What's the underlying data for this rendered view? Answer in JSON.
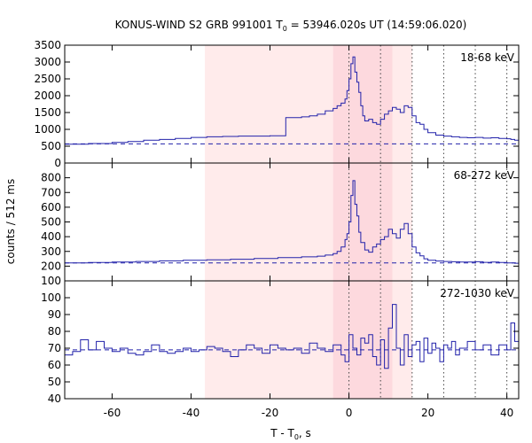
{
  "chart_data": {
    "type": "line",
    "title_main": "KONUS-WIND S2 GRB 991001 T",
    "title_sub": "0",
    "title_rest": " = 53946.020s UT (14:59:06.020)",
    "xlabel_main": "T - T",
    "xlabel_sub": "0",
    "xlabel_rest": ", s",
    "ylabel": "counts / 512 ms",
    "xlim": [
      -72,
      43
    ],
    "xticks": [
      -60,
      -40,
      -20,
      0,
      20,
      40
    ],
    "xtick_labels": [
      "-60",
      "-40",
      "-20",
      "0",
      "20",
      "40"
    ],
    "shading": [
      {
        "x0": -36.5,
        "x1": 16.0,
        "color": "#ffebeb"
      },
      {
        "x0": -4.0,
        "x1": 11.0,
        "color": "#fdd9de"
      }
    ],
    "dotted_lines": [
      0,
      8,
      16,
      24,
      32,
      40
    ],
    "colors": {
      "series": "#2222aa",
      "background_line": "#2222aa"
    },
    "panels": [
      {
        "label": "18-68 keV",
        "ylim": [
          0,
          3500
        ],
        "yticks": [
          0,
          500,
          1000,
          1500,
          2000,
          2500,
          3000,
          3500
        ],
        "ytick_labels": [
          "0",
          "500",
          "1000",
          "1500",
          "2000",
          "2500",
          "3000",
          "3500"
        ],
        "background": 570,
        "series": [
          [
            -72,
            560
          ],
          [
            -66,
            580
          ],
          [
            -60,
            610
          ],
          [
            -56,
            640
          ],
          [
            -52,
            680
          ],
          [
            -48,
            700
          ],
          [
            -44,
            730
          ],
          [
            -40,
            760
          ],
          [
            -36,
            780
          ],
          [
            -32,
            790
          ],
          [
            -28,
            800
          ],
          [
            -24,
            800
          ],
          [
            -20,
            810
          ],
          [
            -16,
            1350
          ],
          [
            -12,
            1370
          ],
          [
            -10,
            1400
          ],
          [
            -8,
            1450
          ],
          [
            -6,
            1550
          ],
          [
            -4,
            1620
          ],
          [
            -3,
            1700
          ],
          [
            -2,
            1780
          ],
          [
            -1,
            1900
          ],
          [
            -0.5,
            2150
          ],
          [
            0,
            2500
          ],
          [
            0.5,
            2950
          ],
          [
            1,
            3150
          ],
          [
            1.5,
            2700
          ],
          [
            2,
            2400
          ],
          [
            2.5,
            2100
          ],
          [
            3,
            1700
          ],
          [
            3.5,
            1400
          ],
          [
            4,
            1250
          ],
          [
            5,
            1300
          ],
          [
            6,
            1200
          ],
          [
            7,
            1150
          ],
          [
            8,
            1300
          ],
          [
            9,
            1450
          ],
          [
            10,
            1550
          ],
          [
            11,
            1650
          ],
          [
            12,
            1600
          ],
          [
            13,
            1500
          ],
          [
            14,
            1700
          ],
          [
            15,
            1650
          ],
          [
            16,
            1400
          ],
          [
            17,
            1200
          ],
          [
            18,
            1150
          ],
          [
            19,
            1000
          ],
          [
            20,
            900
          ],
          [
            22,
            830
          ],
          [
            24,
            800
          ],
          [
            26,
            780
          ],
          [
            28,
            760
          ],
          [
            30,
            750
          ],
          [
            32,
            760
          ],
          [
            34,
            740
          ],
          [
            36,
            750
          ],
          [
            38,
            730
          ],
          [
            40,
            720
          ],
          [
            41,
            700
          ],
          [
            42,
            680
          ],
          [
            43,
            660
          ]
        ]
      },
      {
        "label": "68-272 keV",
        "ylim": [
          100,
          900
        ],
        "yticks": [
          100,
          200,
          300,
          400,
          500,
          600,
          700,
          800
        ],
        "ytick_labels": [
          "100",
          "200",
          "300",
          "400",
          "500",
          "600",
          "700",
          "800"
        ],
        "background": 222,
        "series": [
          [
            -72,
            222
          ],
          [
            -66,
            225
          ],
          [
            -60,
            228
          ],
          [
            -54,
            232
          ],
          [
            -48,
            236
          ],
          [
            -42,
            240
          ],
          [
            -36,
            243
          ],
          [
            -30,
            247
          ],
          [
            -24,
            252
          ],
          [
            -18,
            258
          ],
          [
            -12,
            263
          ],
          [
            -8,
            268
          ],
          [
            -6,
            275
          ],
          [
            -4,
            285
          ],
          [
            -3,
            300
          ],
          [
            -2,
            330
          ],
          [
            -1,
            380
          ],
          [
            -0.5,
            420
          ],
          [
            0,
            500
          ],
          [
            0.5,
            680
          ],
          [
            1,
            780
          ],
          [
            1.5,
            620
          ],
          [
            2,
            540
          ],
          [
            2.5,
            430
          ],
          [
            3,
            360
          ],
          [
            4,
            310
          ],
          [
            5,
            295
          ],
          [
            6,
            330
          ],
          [
            7,
            350
          ],
          [
            8,
            380
          ],
          [
            9,
            400
          ],
          [
            10,
            450
          ],
          [
            11,
            420
          ],
          [
            12,
            390
          ],
          [
            13,
            450
          ],
          [
            14,
            490
          ],
          [
            15,
            420
          ],
          [
            16,
            330
          ],
          [
            17,
            290
          ],
          [
            18,
            270
          ],
          [
            19,
            250
          ],
          [
            20,
            240
          ],
          [
            22,
            235
          ],
          [
            24,
            232
          ],
          [
            26,
            230
          ],
          [
            28,
            228
          ],
          [
            30,
            228
          ],
          [
            32,
            230
          ],
          [
            34,
            226
          ],
          [
            36,
            228
          ],
          [
            38,
            225
          ],
          [
            40,
            222
          ],
          [
            42,
            220
          ],
          [
            43,
            218
          ]
        ]
      },
      {
        "label": "272-1030 keV",
        "ylim": [
          40,
          110
        ],
        "yticks": [
          40,
          50,
          60,
          70,
          80,
          90,
          100
        ],
        "ytick_labels": [
          "40",
          "50",
          "60",
          "70",
          "80",
          "90",
          "100"
        ],
        "background": 69,
        "series": [
          [
            -72,
            66
          ],
          [
            -70,
            68
          ],
          [
            -68,
            75
          ],
          [
            -66,
            69
          ],
          [
            -64,
            74
          ],
          [
            -62,
            70
          ],
          [
            -60,
            68
          ],
          [
            -58,
            70
          ],
          [
            -56,
            67
          ],
          [
            -54,
            66
          ],
          [
            -52,
            68
          ],
          [
            -50,
            72
          ],
          [
            -48,
            68
          ],
          [
            -46,
            67
          ],
          [
            -44,
            68
          ],
          [
            -42,
            70
          ],
          [
            -40,
            68
          ],
          [
            -38,
            69
          ],
          [
            -36,
            71
          ],
          [
            -34,
            70
          ],
          [
            -32,
            68
          ],
          [
            -30,
            65
          ],
          [
            -28,
            69
          ],
          [
            -26,
            72
          ],
          [
            -24,
            70
          ],
          [
            -22,
            67
          ],
          [
            -20,
            72
          ],
          [
            -18,
            70
          ],
          [
            -16,
            69
          ],
          [
            -14,
            70
          ],
          [
            -12,
            67
          ],
          [
            -10,
            73
          ],
          [
            -8,
            70
          ],
          [
            -6,
            68
          ],
          [
            -4,
            72
          ],
          [
            -2,
            66
          ],
          [
            -1,
            62
          ],
          [
            0,
            78
          ],
          [
            1,
            70
          ],
          [
            2,
            66
          ],
          [
            3,
            76
          ],
          [
            4,
            73
          ],
          [
            5,
            78
          ],
          [
            6,
            65
          ],
          [
            7,
            60
          ],
          [
            8,
            75
          ],
          [
            9,
            58
          ],
          [
            10,
            82
          ],
          [
            11,
            96
          ],
          [
            12,
            70
          ],
          [
            13,
            60
          ],
          [
            14,
            78
          ],
          [
            15,
            65
          ],
          [
            16,
            72
          ],
          [
            17,
            74
          ],
          [
            18,
            62
          ],
          [
            19,
            76
          ],
          [
            20,
            67
          ],
          [
            21,
            73
          ],
          [
            22,
            70
          ],
          [
            23,
            62
          ],
          [
            24,
            72
          ],
          [
            25,
            70
          ],
          [
            26,
            74
          ],
          [
            27,
            66
          ],
          [
            28,
            70
          ],
          [
            30,
            74
          ],
          [
            32,
            69
          ],
          [
            34,
            72
          ],
          [
            36,
            66
          ],
          [
            38,
            72
          ],
          [
            40,
            69
          ],
          [
            41,
            85
          ],
          [
            42,
            74
          ],
          [
            43,
            72
          ]
        ]
      }
    ]
  }
}
